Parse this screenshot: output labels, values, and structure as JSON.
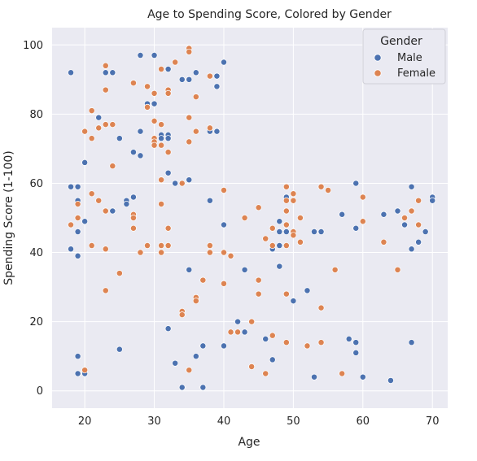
{
  "chart_data": {
    "type": "scatter",
    "title": "Age to Spending Score, Colored by Gender",
    "xlabel": "Age",
    "ylabel": "Spending Score (1-100)",
    "xlim": [
      15.3,
      72.2
    ],
    "ylim": [
      -5,
      105
    ],
    "x_ticks": [
      20,
      30,
      40,
      50,
      60,
      70
    ],
    "y_ticks": [
      0,
      20,
      40,
      60,
      80,
      100
    ],
    "grid": true,
    "legend": {
      "title": "Gender",
      "placement": "top-right",
      "entries": [
        {
          "label": "Male",
          "color": "#4c72b0"
        },
        {
          "label": "Female",
          "color": "#dd8452"
        }
      ]
    },
    "series": [
      {
        "name": "Male",
        "color": "#4c72b0",
        "points": [
          [
            18,
            92
          ],
          [
            18,
            59
          ],
          [
            18,
            41
          ],
          [
            19,
            59
          ],
          [
            19,
            55
          ],
          [
            19,
            50
          ],
          [
            19,
            46
          ],
          [
            19,
            39
          ],
          [
            19,
            10
          ],
          [
            19,
            5
          ],
          [
            20,
            66
          ],
          [
            20,
            49
          ],
          [
            20,
            5
          ],
          [
            22,
            79
          ],
          [
            23,
            92
          ],
          [
            24,
            92
          ],
          [
            24,
            52
          ],
          [
            25,
            73
          ],
          [
            25,
            12
          ],
          [
            26,
            55
          ],
          [
            26,
            54
          ],
          [
            27,
            69
          ],
          [
            27,
            56
          ],
          [
            28,
            97
          ],
          [
            28,
            75
          ],
          [
            28,
            68
          ],
          [
            29,
            83
          ],
          [
            29,
            82
          ],
          [
            30,
            97
          ],
          [
            30,
            83
          ],
          [
            31,
            74
          ],
          [
            31,
            73
          ],
          [
            32,
            93
          ],
          [
            32,
            74
          ],
          [
            32,
            73
          ],
          [
            32,
            63
          ],
          [
            32,
            18
          ],
          [
            33,
            60
          ],
          [
            33,
            8
          ],
          [
            34,
            90
          ],
          [
            34,
            1
          ],
          [
            35,
            90
          ],
          [
            35,
            61
          ],
          [
            35,
            35
          ],
          [
            36,
            92
          ],
          [
            36,
            10
          ],
          [
            37,
            13
          ],
          [
            37,
            1
          ],
          [
            38,
            75
          ],
          [
            38,
            55
          ],
          [
            39,
            91
          ],
          [
            39,
            88
          ],
          [
            39,
            75
          ],
          [
            40,
            95
          ],
          [
            40,
            48
          ],
          [
            40,
            13
          ],
          [
            42,
            20
          ],
          [
            43,
            35
          ],
          [
            43,
            17
          ],
          [
            46,
            15
          ],
          [
            47,
            41
          ],
          [
            47,
            9
          ],
          [
            48,
            49
          ],
          [
            48,
            46
          ],
          [
            48,
            42
          ],
          [
            48,
            36
          ],
          [
            49,
            56
          ],
          [
            49,
            46
          ],
          [
            50,
            26
          ],
          [
            52,
            29
          ],
          [
            53,
            46
          ],
          [
            53,
            4
          ],
          [
            54,
            46
          ],
          [
            57,
            51
          ],
          [
            58,
            15
          ],
          [
            59,
            60
          ],
          [
            59,
            47
          ],
          [
            59,
            14
          ],
          [
            59,
            11
          ],
          [
            60,
            4
          ],
          [
            63,
            51
          ],
          [
            64,
            3
          ],
          [
            65,
            52
          ],
          [
            66,
            48
          ],
          [
            67,
            59
          ],
          [
            67,
            41
          ],
          [
            67,
            14
          ],
          [
            68,
            43
          ],
          [
            69,
            46
          ],
          [
            70,
            56
          ],
          [
            70,
            55
          ]
        ]
      },
      {
        "name": "Female",
        "color": "#dd8452",
        "points": [
          [
            18,
            48
          ],
          [
            19,
            54
          ],
          [
            19,
            50
          ],
          [
            20,
            75
          ],
          [
            20,
            6
          ],
          [
            21,
            81
          ],
          [
            21,
            73
          ],
          [
            21,
            57
          ],
          [
            21,
            42
          ],
          [
            22,
            76
          ],
          [
            22,
            55
          ],
          [
            23,
            94
          ],
          [
            23,
            87
          ],
          [
            23,
            77
          ],
          [
            23,
            52
          ],
          [
            23,
            41
          ],
          [
            23,
            29
          ],
          [
            24,
            77
          ],
          [
            24,
            65
          ],
          [
            25,
            34
          ],
          [
            27,
            89
          ],
          [
            27,
            51
          ],
          [
            27,
            50
          ],
          [
            27,
            47
          ],
          [
            28,
            40
          ],
          [
            29,
            88
          ],
          [
            29,
            82
          ],
          [
            29,
            42
          ],
          [
            30,
            86
          ],
          [
            30,
            78
          ],
          [
            30,
            73
          ],
          [
            30,
            72
          ],
          [
            30,
            71
          ],
          [
            31,
            93
          ],
          [
            31,
            77
          ],
          [
            31,
            71
          ],
          [
            31,
            61
          ],
          [
            31,
            54
          ],
          [
            31,
            42
          ],
          [
            31,
            40
          ],
          [
            32,
            87
          ],
          [
            32,
            86
          ],
          [
            32,
            69
          ],
          [
            32,
            47
          ],
          [
            32,
            42
          ],
          [
            33,
            95
          ],
          [
            34,
            60
          ],
          [
            34,
            23
          ],
          [
            34,
            22
          ],
          [
            35,
            99
          ],
          [
            35,
            98
          ],
          [
            35,
            79
          ],
          [
            35,
            72
          ],
          [
            35,
            6
          ],
          [
            36,
            85
          ],
          [
            36,
            75
          ],
          [
            36,
            27
          ],
          [
            36,
            26
          ],
          [
            37,
            32
          ],
          [
            38,
            91
          ],
          [
            38,
            76
          ],
          [
            38,
            42
          ],
          [
            38,
            40
          ],
          [
            40,
            58
          ],
          [
            40,
            40
          ],
          [
            40,
            31
          ],
          [
            41,
            39
          ],
          [
            41,
            17
          ],
          [
            42,
            17
          ],
          [
            43,
            50
          ],
          [
            44,
            20
          ],
          [
            44,
            7
          ],
          [
            45,
            53
          ],
          [
            45,
            32
          ],
          [
            45,
            28
          ],
          [
            46,
            44
          ],
          [
            46,
            5
          ],
          [
            47,
            47
          ],
          [
            47,
            42
          ],
          [
            47,
            16
          ],
          [
            49,
            59
          ],
          [
            49,
            55
          ],
          [
            49,
            52
          ],
          [
            49,
            48
          ],
          [
            49,
            42
          ],
          [
            49,
            28
          ],
          [
            49,
            14
          ],
          [
            50,
            57
          ],
          [
            50,
            55
          ],
          [
            50,
            46
          ],
          [
            50,
            45
          ],
          [
            51,
            50
          ],
          [
            51,
            43
          ],
          [
            52,
            13
          ],
          [
            54,
            59
          ],
          [
            54,
            24
          ],
          [
            54,
            14
          ],
          [
            55,
            58
          ],
          [
            56,
            35
          ],
          [
            57,
            5
          ],
          [
            60,
            56
          ],
          [
            60,
            49
          ],
          [
            63,
            43
          ],
          [
            65,
            35
          ],
          [
            66,
            50
          ],
          [
            67,
            52
          ],
          [
            68,
            55
          ],
          [
            68,
            48
          ]
        ]
      }
    ]
  }
}
